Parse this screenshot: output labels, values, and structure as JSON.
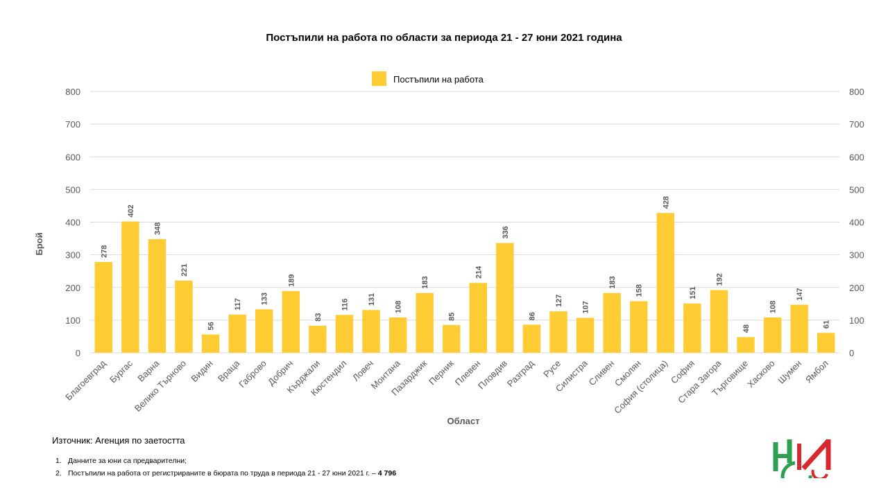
{
  "chart_data": {
    "type": "bar",
    "title": "Постъпили на работа по области за периода 21 - 27 юни 2021 година",
    "xlabel": "Област",
    "ylabel": "Брой",
    "ylim": [
      0,
      800
    ],
    "yticks": [
      0,
      100,
      200,
      300,
      400,
      500,
      600,
      700,
      800
    ],
    "grid": true,
    "legend_position": "top-center",
    "categories": [
      "Благоевград",
      "Бургас",
      "Варна",
      "Велико Търново",
      "Видин",
      "Враца",
      "Габрово",
      "Добрич",
      "Кърджали",
      "Кюстендил",
      "Ловеч",
      "Монтана",
      "Пазарджик",
      "Перник",
      "Плевен",
      "Пловдив",
      "Разград",
      "Русе",
      "Силистра",
      "Сливен",
      "Смолян",
      "София (столица)",
      "София",
      "Стара Загора",
      "Търговище",
      "Хасково",
      "Шумен",
      "Ямбол"
    ],
    "series": [
      {
        "name": "Постъпили на работа",
        "color": "#FFCC33",
        "values": [
          278,
          402,
          348,
          221,
          56,
          117,
          133,
          189,
          83,
          116,
          131,
          108,
          183,
          85,
          214,
          336,
          86,
          127,
          107,
          183,
          158,
          428,
          151,
          192,
          48,
          108,
          147,
          61
        ]
      }
    ]
  },
  "footer": {
    "source": "Източник: Агенция по заетостта",
    "notes": [
      {
        "num": "1.",
        "text": "Данните за юни са предварителни;",
        "bold": ""
      },
      {
        "num": "2.",
        "text": "Постъпили на работа от регистрираните в бюрата по труда в периода 21 - 27 юни 2021 г. –  ",
        "bold": "4 796"
      }
    ]
  },
  "colors": {
    "bar": "#FFCC33",
    "grid": "#D9D9D9",
    "axis_text": "#595959",
    "logo_green": "#2E9E4F",
    "logo_red": "#D7282F"
  },
  "icons": {
    "logo": "nsi-logo"
  }
}
